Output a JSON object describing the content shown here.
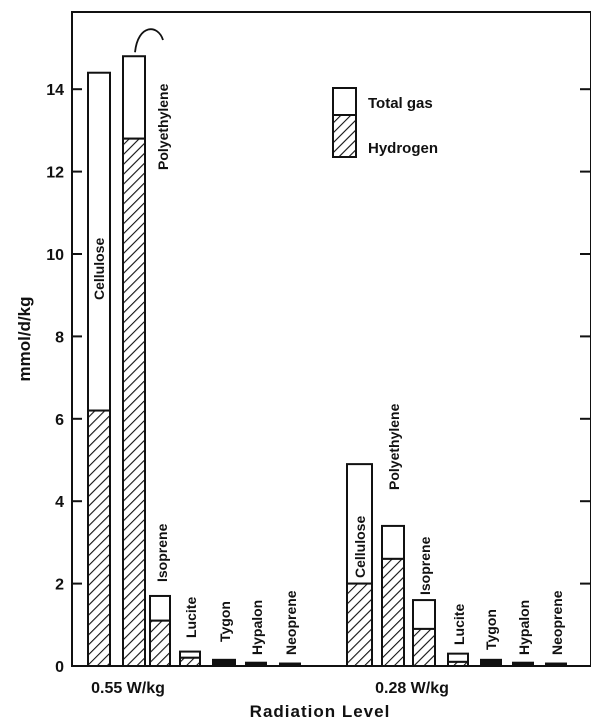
{
  "chart_data": {
    "type": "bar",
    "title": "",
    "xlabel": "Radiation Level",
    "ylabel": "mmol/d/kg",
    "ylim": [
      0,
      15
    ],
    "yticks": [
      0,
      2,
      4,
      6,
      8,
      10,
      12,
      14
    ],
    "legend": {
      "placement": "top-right",
      "entries": [
        {
          "name": "Total gas",
          "pattern": "open"
        },
        {
          "name": "Hydrogen",
          "pattern": "hatched"
        }
      ]
    },
    "groups": [
      {
        "label": "0.55 W/kg",
        "bars": [
          {
            "material": "Cellulose",
            "total": 14.4,
            "hydrogen": 6.2
          },
          {
            "material": "Polyethylene",
            "total": 14.8,
            "hydrogen": 12.8
          },
          {
            "material": "Isoprene",
            "total": 1.7,
            "hydrogen": 1.1
          },
          {
            "material": "Lucite",
            "total": 0.35,
            "hydrogen": 0.2
          },
          {
            "material": "Tygon",
            "total": 0.15,
            "hydrogen": 0.15
          },
          {
            "material": "Hypalon",
            "total": 0.08,
            "hydrogen": 0.08
          },
          {
            "material": "Neoprene",
            "total": 0.06,
            "hydrogen": 0.06
          }
        ]
      },
      {
        "label": "0.28 W/kg",
        "bars": [
          {
            "material": "Cellulose",
            "total": 4.9,
            "hydrogen": 2.0
          },
          {
            "material": "Polyethylene",
            "total": 3.4,
            "hydrogen": 2.6
          },
          {
            "material": "Isoprene",
            "total": 1.6,
            "hydrogen": 0.9
          },
          {
            "material": "Lucite",
            "total": 0.3,
            "hydrogen": 0.1
          },
          {
            "material": "Tygon",
            "total": 0.15,
            "hydrogen": 0.15
          },
          {
            "material": "Hypalon",
            "total": 0.08,
            "hydrogen": 0.08
          },
          {
            "material": "Neoprene",
            "total": 0.06,
            "hydrogen": 0.06
          }
        ]
      }
    ]
  }
}
